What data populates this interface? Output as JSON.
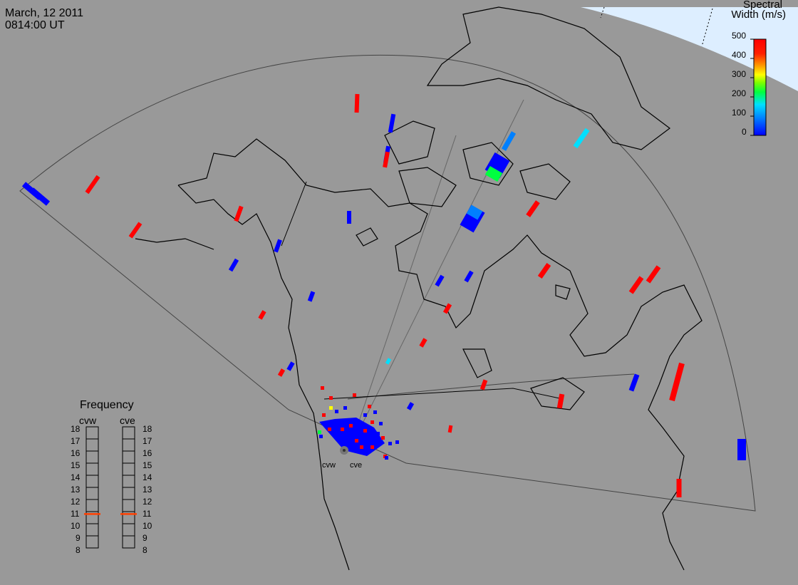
{
  "header": {
    "date": "March, 12 2011",
    "time": "0814:00 UT"
  },
  "colorbar": {
    "title_line1": "Spectral",
    "title_line2": "Width (m/s)",
    "ticks": [
      "500",
      "400",
      "300",
      "200",
      "100",
      "0"
    ],
    "colors": [
      "#0000ff",
      "#0080ff",
      "#00e0ff",
      "#00ff40",
      "#80ff00",
      "#ffff00",
      "#ffa000",
      "#ff2000",
      "#ff0000"
    ]
  },
  "frequency_panel": {
    "title": "Frequency",
    "radars": [
      "cvw",
      "cve"
    ],
    "scale": [
      "18",
      "17",
      "16",
      "15",
      "14",
      "13",
      "12",
      "11",
      "10",
      "9",
      "8"
    ],
    "current_mhz": {
      "cvw": 10.8,
      "cve": 10.8
    },
    "marker_color": "#ff4000"
  },
  "sites": {
    "west": "cvw",
    "east": "cve"
  },
  "map_colors": {
    "background": "#999999",
    "space": "#ddeeff",
    "coast": "#000000",
    "fov": "#555555"
  }
}
